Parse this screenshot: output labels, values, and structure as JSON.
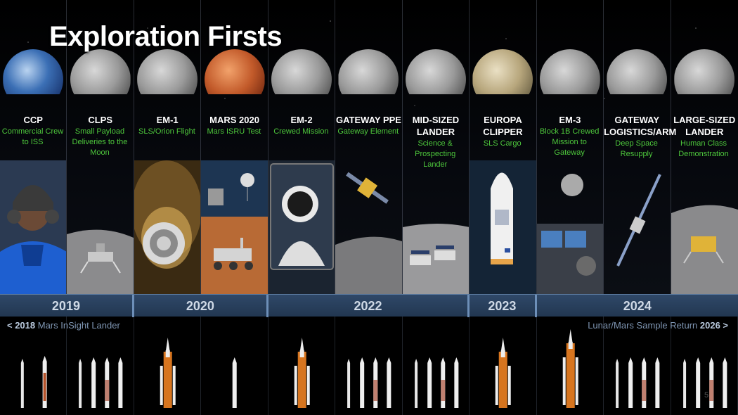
{
  "title": "Exploration Firsts",
  "columns": [
    {
      "name": "CCP",
      "sub": "Commercial Crew to ISS",
      "body": "earth",
      "scene": "astronaut-portrait"
    },
    {
      "name": "CLPS",
      "sub": "Small Payload Deliveries to the Moon",
      "body": "moon",
      "scene": "small-lander"
    },
    {
      "name": "EM-1",
      "sub": "SLS/Orion Flight",
      "body": "moon",
      "scene": "orion-reentry"
    },
    {
      "name": "MARS 2020",
      "sub": "Mars ISRU Test",
      "body": "mars",
      "scene": "mars-rover"
    },
    {
      "name": "EM-2",
      "sub": "Crewed Mission",
      "body": "moon",
      "scene": "astronaut-spacewalk"
    },
    {
      "name": "GATEWAY PPE",
      "sub": "Gateway Element",
      "body": "moon",
      "scene": "gateway-ppe"
    },
    {
      "name": "MID-SIZED LANDER",
      "sub": "Science & Prospecting Lander",
      "body": "moon",
      "scene": "mid-lander"
    },
    {
      "name": "EUROPA CLIPPER",
      "sub": "SLS Cargo",
      "body": "europa",
      "scene": "fairing"
    },
    {
      "name": "EM-3",
      "sub": "Block 1B Crewed Mission to Gateway",
      "body": "moon",
      "scene": "orion-cabin"
    },
    {
      "name": "GATEWAY LOGISTICS/ARM",
      "sub": "Deep Space Resupply",
      "body": "moon",
      "scene": "logistics-craft"
    },
    {
      "name": "LARGE-SIZED LANDER",
      "sub": "Human Class Demonstration",
      "body": "moon",
      "scene": "large-lander"
    }
  ],
  "years": [
    {
      "label": "2019",
      "cols": 2
    },
    {
      "label": "2020",
      "cols": 2
    },
    {
      "label": "2022",
      "cols": 3
    },
    {
      "label": "2023",
      "cols": 1
    },
    {
      "label": "2024",
      "cols": 3
    }
  ],
  "notes": {
    "left_prefix": "< 2018",
    "left_text": " Mars InSight Lander",
    "right_text": "Lunar/Mars Sample Return ",
    "right_suffix": "2026 >"
  },
  "rockets": [
    [
      "thin-white",
      "orange-stripe"
    ],
    [
      "thin-white",
      "white-booster",
      "white-booster-red",
      "white-booster"
    ],
    [
      "sls"
    ],
    [
      "white-booster"
    ],
    [
      "sls"
    ],
    [
      "thin-white",
      "white-booster",
      "white-booster-red",
      "white-booster"
    ],
    [
      "thin-white",
      "white-booster",
      "white-booster-red",
      "white-booster"
    ],
    [
      "sls"
    ],
    [
      "sls-tall"
    ],
    [
      "thin-white",
      "white-booster",
      "white-booster-red",
      "white-booster"
    ],
    [
      "thin-white",
      "white-booster",
      "white-booster-red",
      "white-booster"
    ]
  ],
  "page_number": "5"
}
